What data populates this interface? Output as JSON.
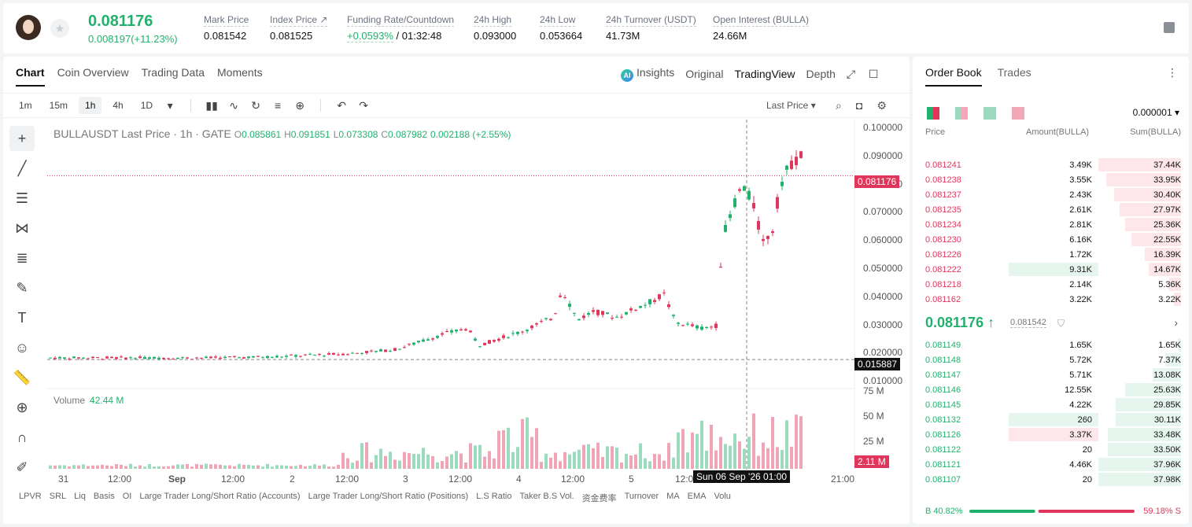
{
  "header": {
    "last_price": "0.081176",
    "change": "0.008197(+11.23%)",
    "stats": [
      {
        "label": "Mark Price",
        "value": "0.081542"
      },
      {
        "label": "Index Price ↗",
        "value": "0.081525"
      },
      {
        "label": "Funding Rate/Countdown",
        "value_green": "+0.0593%",
        "value": " / 01:32:48"
      },
      {
        "label": "24h High",
        "value": "0.093000"
      },
      {
        "label": "24h Low",
        "value": "0.053664"
      },
      {
        "label": "24h Turnover (USDT)",
        "value": "41.73M"
      },
      {
        "label": "Open Interest (BULLA)",
        "value": "24.66M"
      }
    ]
  },
  "chart_tabs": [
    "Chart",
    "Coin Overview",
    "Trading Data",
    "Moments"
  ],
  "view_tabs": {
    "insights": "Insights",
    "original": "Original",
    "tradingview": "TradingView",
    "depth": "Depth",
    "ai_badge": "AI"
  },
  "timeframes": [
    "1m",
    "15m",
    "1h",
    "4h",
    "1D"
  ],
  "last_price_select": "Last Price ▾",
  "legend": {
    "title": "BULLAUSDT Last Price · 1h · GATE",
    "o": "0.085861",
    "h": "0.091851",
    "l": "0.073308",
    "c": "0.087982",
    "chg": "0.002188 (+2.55%)"
  },
  "volume": {
    "label": "Volume",
    "value": "42.44 M"
  },
  "price_axis": [
    "0.100000",
    "0.090000",
    "0.080000",
    "0.070000",
    "0.060000",
    "0.050000",
    "0.040000",
    "0.030000",
    "0.020000",
    "0.010000"
  ],
  "volume_axis": [
    "75 M",
    "50 M",
    "25 M"
  ],
  "tags": {
    "current": "0.081176",
    "cursor": "0.015887",
    "volume": "2.11 M"
  },
  "time_axis": [
    "31",
    "12:00",
    "Sep",
    "12:00",
    "2",
    "12:00",
    "3",
    "12:00",
    "4",
    "12:00",
    "5",
    "12:00",
    "21:00"
  ],
  "time_cursor": "Sun 06 Sep '26   01:00",
  "indicators": [
    "LPVR",
    "SRL",
    "Liq",
    "Basis",
    "OI",
    "Large Trader Long/Short Ratio (Accounts)",
    "Large Trader Long/Short Ratio (Positions)",
    "L.S Ratio",
    "Taker B.S Vol.",
    "资金费率",
    "Turnover",
    "MA",
    "EMA",
    "Volu"
  ],
  "orderbook": {
    "tabs": [
      "Order Book",
      "Trades"
    ],
    "precision": "0.000001",
    "headers": {
      "price": "Price",
      "amount": "Amount(BULLA)",
      "sum": "Sum(BULLA)"
    },
    "asks": [
      {
        "price": "0.081241",
        "amount": "3.49K",
        "sum": "37.44K",
        "depth": 1.0
      },
      {
        "price": "0.081238",
        "amount": "3.55K",
        "sum": "33.95K",
        "depth": 0.907
      },
      {
        "price": "0.081237",
        "amount": "2.43K",
        "sum": "30.40K",
        "depth": 0.812
      },
      {
        "price": "0.081235",
        "amount": "2.61K",
        "sum": "27.97K",
        "depth": 0.747
      },
      {
        "price": "0.081234",
        "amount": "2.81K",
        "sum": "25.36K",
        "depth": 0.677
      },
      {
        "price": "0.081230",
        "amount": "6.16K",
        "sum": "22.55K",
        "depth": 0.602
      },
      {
        "price": "0.081226",
        "amount": "1.72K",
        "sum": "16.39K",
        "depth": 0.438
      },
      {
        "price": "0.081222",
        "amount": "9.31K",
        "sum": "14.67K",
        "depth": 0.392,
        "hl": true
      },
      {
        "price": "0.081218",
        "amount": "2.14K",
        "sum": "5.36K",
        "depth": 0.143
      },
      {
        "price": "0.081162",
        "amount": "3.22K",
        "sum": "3.22K",
        "depth": 0.086
      }
    ],
    "mid": {
      "price": "0.081176 ↑",
      "mark": "0.081542"
    },
    "bids": [
      {
        "price": "0.081149",
        "amount": "1.65K",
        "sum": "1.65K",
        "depth": 0.043
      },
      {
        "price": "0.081148",
        "amount": "5.72K",
        "sum": "7.37K",
        "depth": 0.194
      },
      {
        "price": "0.081147",
        "amount": "5.71K",
        "sum": "13.08K",
        "depth": 0.344
      },
      {
        "price": "0.081146",
        "amount": "12.55K",
        "sum": "25.63K",
        "depth": 0.675
      },
      {
        "price": "0.081145",
        "amount": "4.22K",
        "sum": "29.85K",
        "depth": 0.786
      },
      {
        "price": "0.081132",
        "amount": "260",
        "sum": "30.11K",
        "depth": 0.793,
        "hl": true
      },
      {
        "price": "0.081126",
        "amount": "3.37K",
        "sum": "33.48K",
        "depth": 0.882,
        "hlr": true
      },
      {
        "price": "0.081122",
        "amount": "20",
        "sum": "33.50K",
        "depth": 0.882
      },
      {
        "price": "0.081121",
        "amount": "4.46K",
        "sum": "37.96K",
        "depth": 1.0
      },
      {
        "price": "0.081107",
        "amount": "20",
        "sum": "37.98K",
        "depth": 1.0
      }
    ],
    "ratio": {
      "buy": "B 40.82%",
      "sell": "59.18% S",
      "buy_fraction": 0.4082
    }
  },
  "colors": {
    "up": "#20b26c",
    "down": "#e0365b"
  }
}
